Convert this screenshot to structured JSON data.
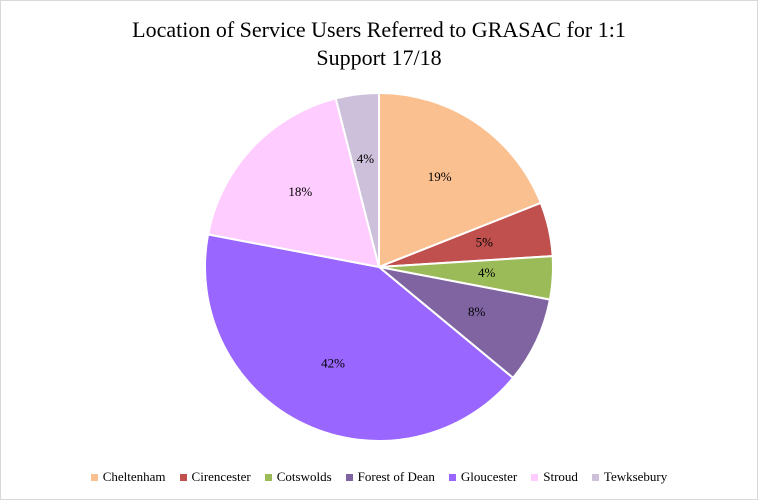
{
  "chart_data": {
    "type": "pie",
    "title_lines": [
      "Location of Service Users Referred to GRASAC for 1:1",
      "Support 17/18"
    ],
    "legend_position": "bottom",
    "slices": [
      {
        "name": "Cheltenham",
        "value": 19,
        "label": "19%",
        "color": "#FAC090"
      },
      {
        "name": "Cirencester",
        "value": 5,
        "label": "5%",
        "color": "#C0504D"
      },
      {
        "name": "Cotswolds",
        "value": 4,
        "label": "4%",
        "color": "#9BBB59"
      },
      {
        "name": "Forest of Dean",
        "value": 8,
        "label": "8%",
        "color": "#8064A2"
      },
      {
        "name": "Gloucester",
        "value": 42,
        "label": "42%",
        "color": "#9966FF"
      },
      {
        "name": "Stroud",
        "value": 18,
        "label": "18%",
        "color": "#FFCCFF"
      },
      {
        "name": "Tewksebury",
        "value": 4,
        "label": "4%",
        "color": "#CCC0DA"
      }
    ]
  }
}
